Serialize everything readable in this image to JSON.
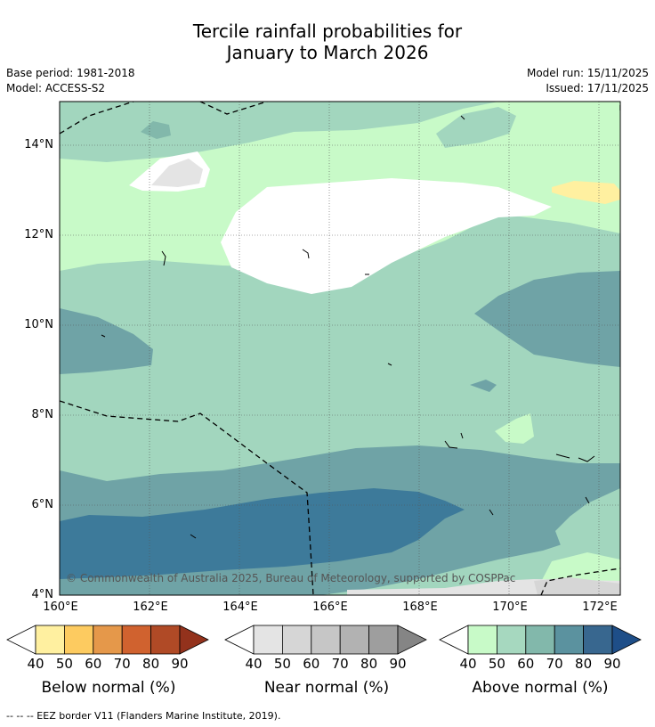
{
  "title_line1": "Tercile rainfall probabilities for",
  "title_line2": "January to March 2026",
  "base_period": "Base period: 1981-2018",
  "model": "Model: ACCESS-S2",
  "model_run": "Model run: 15/11/2025",
  "issued": "Issued: 17/11/2025",
  "copyright": "© Commonwealth of Australia 2025, Bureau of Meteorology, supported by COSPPac",
  "lat_labels": [
    "14°N",
    "12°N",
    "10°N",
    "8°N",
    "6°N",
    "4°N"
  ],
  "lon_labels": [
    "160°E",
    "162°E",
    "164°E",
    "166°E",
    "168°E",
    "170°E",
    "172°E"
  ],
  "legends": [
    {
      "title": "Below normal (%)",
      "ticks": [
        "40",
        "50",
        "60",
        "70",
        "80",
        "90"
      ],
      "colors": [
        "#fff0a0",
        "#fdcb60",
        "#e5984a",
        "#d0622f",
        "#b04a26",
        "#93321c"
      ]
    },
    {
      "title": "Near normal (%)",
      "ticks": [
        "40",
        "50",
        "60",
        "70",
        "80",
        "90"
      ],
      "colors": [
        "#e4e4e4",
        "#d6d6d6",
        "#c6c6c6",
        "#b2b2b2",
        "#9e9e9e",
        "#858585"
      ]
    },
    {
      "title": "Above normal (%)",
      "ticks": [
        "40",
        "50",
        "60",
        "70",
        "80",
        "90"
      ],
      "colors": [
        "#c8fac8",
        "#a6d8bf",
        "#82b8ab",
        "#5b929f",
        "#38678f",
        "#1e4e88"
      ]
    }
  ],
  "footnote": "--  --  -- EEZ border V11 (Flanders Marine Institute, 2019)."
}
